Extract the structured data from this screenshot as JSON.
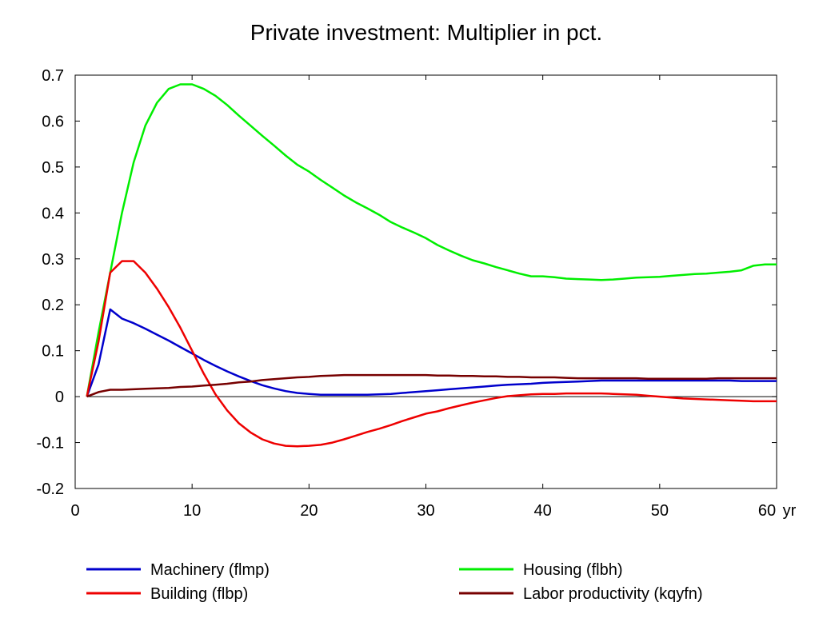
{
  "chart_data": {
    "type": "line",
    "title": "Private investment: Multiplier in pct.",
    "x_unit_label": "yr",
    "xlim": [
      0,
      60
    ],
    "ylim": [
      -0.2,
      0.7
    ],
    "x_ticks": [
      0,
      10,
      20,
      30,
      40,
      50,
      60
    ],
    "y_ticks": [
      -0.2,
      -0.1,
      0,
      0.1,
      0.2,
      0.3,
      0.4,
      0.5,
      0.6,
      0.7
    ],
    "y_tick_labels": [
      "-0.2",
      "-0.1",
      "0",
      "0.1",
      "0.2",
      "0.3",
      "0.4",
      "0.5",
      "0.6",
      "0.7"
    ],
    "grid": false,
    "legend_placement": "bottom",
    "x": [
      1,
      2,
      3,
      4,
      5,
      6,
      7,
      8,
      9,
      10,
      11,
      12,
      13,
      14,
      15,
      16,
      17,
      18,
      19,
      20,
      21,
      22,
      23,
      24,
      25,
      26,
      27,
      28,
      29,
      30,
      31,
      32,
      33,
      34,
      35,
      36,
      37,
      38,
      39,
      40,
      41,
      42,
      43,
      44,
      45,
      46,
      47,
      48,
      49,
      50,
      51,
      52,
      53,
      54,
      55,
      56,
      57,
      58,
      59,
      60
    ],
    "series": [
      {
        "name": "Machinery (flmp)",
        "color": "#0000cc",
        "values": [
          0,
          0.07,
          0.19,
          0.17,
          0.16,
          0.148,
          0.135,
          0.122,
          0.108,
          0.094,
          0.08,
          0.067,
          0.055,
          0.044,
          0.034,
          0.025,
          0.018,
          0.012,
          0.008,
          0.006,
          0.004,
          0.004,
          0.004,
          0.004,
          0.004,
          0.005,
          0.006,
          0.008,
          0.01,
          0.012,
          0.014,
          0.016,
          0.018,
          0.02,
          0.022,
          0.024,
          0.026,
          0.027,
          0.028,
          0.03,
          0.031,
          0.032,
          0.033,
          0.034,
          0.035,
          0.035,
          0.035,
          0.035,
          0.035,
          0.035,
          0.035,
          0.035,
          0.035,
          0.035,
          0.035,
          0.035,
          0.034,
          0.034,
          0.034,
          0.034
        ]
      },
      {
        "name": "Housing (flbh)",
        "color": "#00ee00",
        "values": [
          0,
          0.14,
          0.27,
          0.4,
          0.51,
          0.59,
          0.64,
          0.67,
          0.68,
          0.68,
          0.67,
          0.655,
          0.635,
          0.612,
          0.59,
          0.568,
          0.547,
          0.525,
          0.505,
          0.49,
          0.472,
          0.455,
          0.438,
          0.423,
          0.41,
          0.396,
          0.38,
          0.368,
          0.357,
          0.345,
          0.33,
          0.318,
          0.307,
          0.297,
          0.29,
          0.282,
          0.275,
          0.268,
          0.262,
          0.262,
          0.26,
          0.257,
          0.256,
          0.255,
          0.254,
          0.255,
          0.257,
          0.259,
          0.26,
          0.261,
          0.263,
          0.265,
          0.267,
          0.268,
          0.27,
          0.272,
          0.275,
          0.285,
          0.288,
          0.288
        ]
      },
      {
        "name": "Building (flbp)",
        "color": "#ee0000",
        "values": [
          0,
          0.12,
          0.27,
          0.295,
          0.295,
          0.27,
          0.235,
          0.195,
          0.15,
          0.1,
          0.05,
          0.005,
          -0.03,
          -0.058,
          -0.078,
          -0.093,
          -0.102,
          -0.107,
          -0.108,
          -0.107,
          -0.105,
          -0.1,
          -0.093,
          -0.085,
          -0.077,
          -0.07,
          -0.062,
          -0.053,
          -0.045,
          -0.037,
          -0.032,
          -0.025,
          -0.019,
          -0.013,
          -0.008,
          -0.003,
          0.001,
          0.003,
          0.005,
          0.006,
          0.006,
          0.007,
          0.007,
          0.007,
          0.007,
          0.006,
          0.005,
          0.004,
          0.002,
          0,
          -0.002,
          -0.004,
          -0.005,
          -0.006,
          -0.007,
          -0.008,
          -0.009,
          -0.01,
          -0.01,
          -0.01
        ]
      },
      {
        "name": "Labor productivity (kqyfn)",
        "color": "#770000",
        "values": [
          0,
          0.01,
          0.015,
          0.015,
          0.016,
          0.017,
          0.018,
          0.019,
          0.021,
          0.022,
          0.024,
          0.026,
          0.028,
          0.031,
          0.033,
          0.036,
          0.038,
          0.04,
          0.042,
          0.043,
          0.045,
          0.046,
          0.047,
          0.047,
          0.047,
          0.047,
          0.047,
          0.047,
          0.047,
          0.047,
          0.046,
          0.046,
          0.045,
          0.045,
          0.044,
          0.044,
          0.043,
          0.043,
          0.042,
          0.042,
          0.042,
          0.041,
          0.04,
          0.04,
          0.04,
          0.04,
          0.04,
          0.04,
          0.039,
          0.039,
          0.039,
          0.039,
          0.039,
          0.039,
          0.04,
          0.04,
          0.04,
          0.04,
          0.04,
          0.04
        ]
      }
    ]
  }
}
